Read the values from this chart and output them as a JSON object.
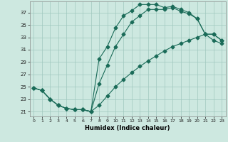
{
  "xlabel": "Humidex (Indice chaleur)",
  "bg_color": "#cde8e0",
  "grid_color": "#a0c8be",
  "line_color": "#1a6b58",
  "xlim": [
    -0.5,
    23.5
  ],
  "ylim": [
    20.2,
    38.8
  ],
  "yticks": [
    21,
    23,
    25,
    27,
    29,
    31,
    33,
    35,
    37
  ],
  "xticks": [
    0,
    1,
    2,
    3,
    4,
    5,
    6,
    7,
    8,
    9,
    10,
    11,
    12,
    13,
    14,
    15,
    16,
    17,
    18,
    19,
    20,
    21,
    22,
    23
  ],
  "line1_x": [
    0,
    1,
    2,
    3,
    4,
    5,
    6,
    7,
    8,
    9,
    10,
    11,
    12,
    13,
    14,
    15,
    16,
    17,
    18,
    19,
    20,
    21,
    22,
    23
  ],
  "line1_y": [
    24.8,
    24.4,
    23.0,
    22.0,
    21.5,
    21.3,
    21.3,
    21.0,
    25.5,
    28.5,
    31.5,
    33.5,
    35.5,
    36.5,
    37.5,
    37.5,
    37.5,
    37.8,
    37.2,
    36.8,
    36.0,
    33.5,
    33.5,
    32.5
  ],
  "line2_x": [
    0,
    1,
    2,
    3,
    4,
    5,
    6,
    7,
    8,
    9,
    10,
    11,
    12,
    13,
    14,
    15,
    16,
    17,
    18,
    19,
    20,
    21,
    22,
    23
  ],
  "line2_y": [
    24.8,
    24.4,
    23.0,
    22.0,
    21.5,
    21.3,
    21.3,
    21.0,
    29.5,
    31.5,
    34.5,
    36.5,
    37.3,
    38.3,
    38.3,
    38.3,
    37.8,
    38.0,
    37.5,
    37.0,
    36.0,
    33.5,
    33.5,
    32.5
  ],
  "line3_x": [
    0,
    1,
    2,
    3,
    4,
    5,
    6,
    7,
    8,
    9,
    10,
    11,
    12,
    13,
    14,
    15,
    16,
    17,
    18,
    19,
    20,
    21,
    22,
    23
  ],
  "line3_y": [
    24.8,
    24.4,
    23.0,
    22.0,
    21.5,
    21.3,
    21.3,
    21.0,
    22.0,
    23.5,
    25.0,
    26.2,
    27.3,
    28.3,
    29.2,
    30.0,
    30.8,
    31.5,
    32.0,
    32.5,
    33.0,
    33.5,
    32.5,
    32.0
  ]
}
